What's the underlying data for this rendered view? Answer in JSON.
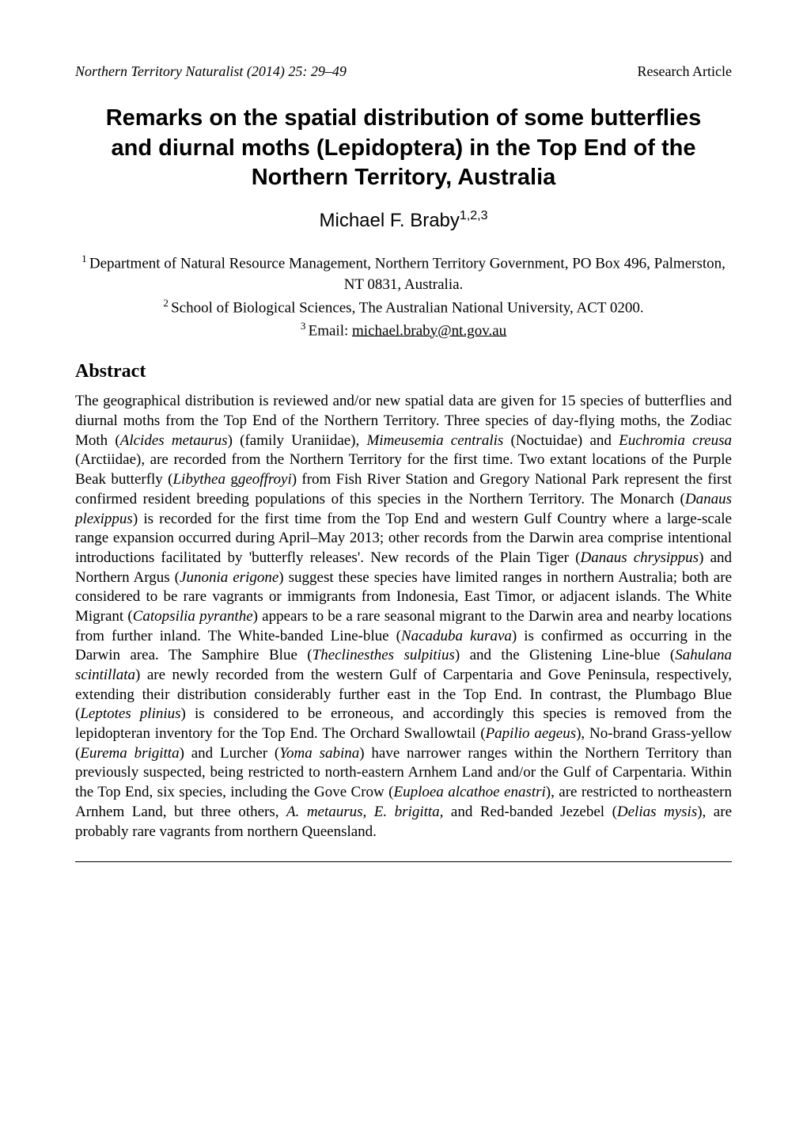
{
  "header": {
    "journal": "Northern Territory Naturalist",
    "citation": " (2014) 25: 29–49",
    "article_type": "Research Article"
  },
  "title": "Remarks on the spatial distribution of some butterflies and diurnal moths (Lepidoptera) in the Top End of the Northern Territory, Australia",
  "author": {
    "name": "Michael F. Braby",
    "superscript": "1,2,3"
  },
  "affiliations": {
    "aff1_super": "1 ",
    "aff1": "Department of Natural Resource Management, Northern Territory Government, PO Box 496, Palmerston, NT 0831, Australia.",
    "aff2_super": "2 ",
    "aff2": "School of Biological Sciences, The Australian National University, ACT 0200.",
    "aff3_super": "3 ",
    "aff3_prefix": "Email: ",
    "aff3_email": "michael.braby@nt.gov.au"
  },
  "abstract": {
    "heading": "Abstract",
    "p1_a": "The geographical distribution is reviewed and/or new spatial data are given for 15 species of butterflies and diurnal moths from the Top End of the Northern Territory. Three species of day-flying moths, the Zodiac Moth (",
    "sp1": "Alcides metaurus",
    "p1_b": ") (family Uraniidae), ",
    "sp2": "Mimeusemia centralis",
    "p1_c": " (Noctuidae) and ",
    "sp3": "Euchromia creusa",
    "p1_d": " (Arctiidae), are recorded from the Northern Territory for the first time. Two extant locations of the Purple Beak butterfly (",
    "sp4": "Libythea ",
    "sp4b": "geoffroyi",
    "p1_e": ") from Fish River Station and Gregory National Park represent the first confirmed resident breeding populations of this species in the Northern Territory. The Monarch (",
    "sp5": "Danaus plexippus",
    "p1_f": ") is recorded for the first time from the Top End and western Gulf Country where a large-scale range expansion occurred during April–May 2013; other records from the Darwin area comprise intentional introductions facilitated by 'butterfly releases'. New records of the Plain Tiger (",
    "sp6": "Danaus chrysippus",
    "p1_g": ") and Northern Argus (",
    "sp7": "Junonia erigone",
    "p1_h": ") suggest these species have limited ranges in northern Australia; both are considered to be rare vagrants or immigrants from Indonesia, East Timor, or adjacent islands. The White Migrant (",
    "sp8": "Catopsilia pyranthe",
    "p1_i": ") appears to be a rare seasonal migrant to the Darwin area and nearby locations from further inland. The White-banded Line-blue (",
    "sp9": "Nacaduba kurava",
    "p1_j": ") is confirmed as occurring in the Darwin area. The Samphire Blue (",
    "sp10": "Theclinesthes sulpitius",
    "p1_k": ") and the Glistening Line-blue (",
    "sp11": "Sahulana scintillata",
    "p1_l": ") are newly recorded from the western Gulf of Carpentaria and Gove Peninsula, respectively, extending their distribution considerably further east in the Top End. In contrast, the Plumbago Blue (",
    "sp12": "Leptotes plinius",
    "p1_m": ") is considered to be erroneous, and accordingly this species is removed from the lepidopteran inventory for the Top End. The Orchard Swallowtail (",
    "sp13": "Papilio aegeus",
    "p1_n": "), No-brand Grass-yellow (",
    "sp14": "Eurema brigitta",
    "p1_o": ") and Lurcher (",
    "sp15": "Yoma sabina",
    "p1_p": ") have narrower ranges within the Northern Territory than previously suspected, being restricted to north-eastern Arnhem Land and/or the Gulf of Carpentaria. Within the Top End, six species, including the Gove Crow (",
    "sp16": "Euploea alcathoe enastri",
    "p1_q": "), are restricted to northeastern Arnhem Land, but three others, ",
    "sp17": "A. metaurus, E. brigitta,",
    "p1_r": " and Red-banded Jezebel (",
    "sp18": "Delias mysis",
    "p1_s": "), are probably rare vagrants from northern Queensland."
  }
}
